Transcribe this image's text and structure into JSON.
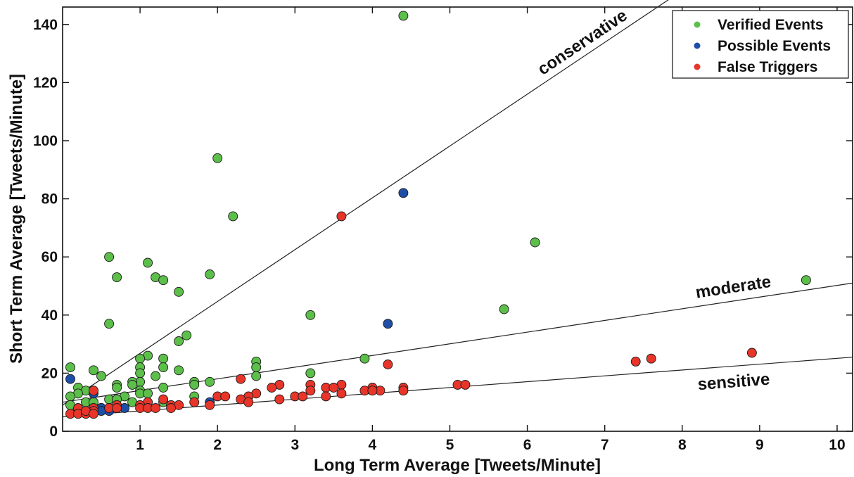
{
  "chart_data": {
    "type": "scatter",
    "title": "",
    "xlabel": "Long Term Average [Tweets/Minute]",
    "ylabel": "Short Term Average [Tweets/Minute]",
    "xlim": [
      0,
      10.2
    ],
    "ylim": [
      0,
      146
    ],
    "x_ticks": [
      1,
      2,
      3,
      4,
      5,
      6,
      7,
      8,
      9,
      10
    ],
    "y_ticks": [
      0,
      20,
      40,
      60,
      80,
      100,
      120,
      140
    ],
    "grid": false,
    "legend_position": "top-right",
    "series": [
      {
        "name": "Verified Events",
        "color": "#5cbf4a",
        "points": [
          [
            4.4,
            143
          ],
          [
            2.0,
            94
          ],
          [
            2.2,
            74
          ],
          [
            6.1,
            65
          ],
          [
            0.6,
            60
          ],
          [
            1.1,
            58
          ],
          [
            1.2,
            53
          ],
          [
            0.7,
            53
          ],
          [
            1.3,
            52
          ],
          [
            1.9,
            54
          ],
          [
            9.6,
            52
          ],
          [
            1.5,
            48
          ],
          [
            5.7,
            42
          ],
          [
            3.2,
            40
          ],
          [
            0.6,
            37
          ],
          [
            1.6,
            33
          ],
          [
            1.5,
            31
          ],
          [
            1.1,
            26
          ],
          [
            1.0,
            25
          ],
          [
            1.3,
            25
          ],
          [
            3.9,
            25
          ],
          [
            2.5,
            24
          ],
          [
            0.1,
            22
          ],
          [
            1.0,
            22
          ],
          [
            1.3,
            22
          ],
          [
            2.5,
            22
          ],
          [
            0.4,
            21
          ],
          [
            1.5,
            21
          ],
          [
            1.0,
            20
          ],
          [
            3.2,
            20
          ],
          [
            0.5,
            19
          ],
          [
            1.2,
            19
          ],
          [
            2.5,
            19
          ],
          [
            1.0,
            17
          ],
          [
            1.7,
            17
          ],
          [
            1.9,
            17
          ],
          [
            0.9,
            17
          ],
          [
            0.7,
            16
          ],
          [
            0.9,
            16
          ],
          [
            1.7,
            16
          ],
          [
            0.2,
            15
          ],
          [
            0.7,
            15
          ],
          [
            1.3,
            15
          ],
          [
            0.3,
            14
          ],
          [
            1.0,
            14
          ],
          [
            0.2,
            13
          ],
          [
            1.0,
            13
          ],
          [
            1.1,
            13
          ],
          [
            0.1,
            12
          ],
          [
            0.8,
            12
          ],
          [
            1.7,
            12
          ],
          [
            0.6,
            11
          ],
          [
            0.7,
            11
          ],
          [
            0.3,
            10
          ],
          [
            0.4,
            10
          ],
          [
            0.9,
            10
          ],
          [
            1.3,
            10
          ],
          [
            0.1,
            9
          ],
          [
            0.5,
            8
          ],
          [
            0.2,
            7
          ]
        ]
      },
      {
        "name": "Possible Events",
        "color": "#1f4ea6",
        "points": [
          [
            4.4,
            82
          ],
          [
            4.2,
            37
          ],
          [
            0.1,
            18
          ],
          [
            0.4,
            13
          ],
          [
            1.9,
            10
          ],
          [
            0.8,
            8
          ],
          [
            0.5,
            8
          ],
          [
            0.6,
            7
          ],
          [
            0.5,
            7
          ]
        ]
      },
      {
        "name": "False Triggers",
        "color": "#e8352a",
        "points": [
          [
            3.6,
            74
          ],
          [
            8.9,
            27
          ],
          [
            7.6,
            25
          ],
          [
            7.4,
            24
          ],
          [
            4.2,
            23
          ],
          [
            2.3,
            18
          ],
          [
            2.8,
            16
          ],
          [
            3.2,
            16
          ],
          [
            3.6,
            16
          ],
          [
            5.1,
            16
          ],
          [
            5.2,
            16
          ],
          [
            2.7,
            15
          ],
          [
            3.4,
            15
          ],
          [
            3.5,
            15
          ],
          [
            4.4,
            15
          ],
          [
            4.0,
            15
          ],
          [
            3.9,
            14
          ],
          [
            4.1,
            14
          ],
          [
            4.0,
            14
          ],
          [
            4.4,
            14
          ],
          [
            3.2,
            14
          ],
          [
            0.4,
            14
          ],
          [
            2.5,
            13
          ],
          [
            3.6,
            13
          ],
          [
            2.0,
            12
          ],
          [
            2.1,
            12
          ],
          [
            2.4,
            12
          ],
          [
            3.0,
            12
          ],
          [
            3.1,
            12
          ],
          [
            3.4,
            12
          ],
          [
            2.3,
            11
          ],
          [
            2.8,
            11
          ],
          [
            1.3,
            11
          ],
          [
            2.4,
            10
          ],
          [
            1.7,
            10
          ],
          [
            1.1,
            10
          ],
          [
            0.7,
            9
          ],
          [
            1.4,
            9
          ],
          [
            1.5,
            9
          ],
          [
            1.9,
            9
          ],
          [
            1.0,
            9
          ],
          [
            0.2,
            8
          ],
          [
            0.4,
            8
          ],
          [
            0.6,
            8
          ],
          [
            0.7,
            8
          ],
          [
            1.0,
            8
          ],
          [
            1.1,
            8
          ],
          [
            1.2,
            8
          ],
          [
            1.4,
            8
          ],
          [
            0.1,
            6
          ],
          [
            0.2,
            6
          ],
          [
            0.3,
            6
          ],
          [
            0.4,
            7
          ],
          [
            0.3,
            7
          ],
          [
            0.4,
            6
          ]
        ]
      }
    ],
    "threshold_lines": [
      {
        "label": "conservative",
        "x": [
          0,
          7.85
        ],
        "y": [
          9,
          149
        ]
      },
      {
        "label": "moderate",
        "x": [
          0,
          10.2
        ],
        "y": [
          10,
          51
        ]
      },
      {
        "label": "sensitive",
        "x": [
          0,
          10.2
        ],
        "y": [
          5,
          25.5
        ]
      }
    ]
  }
}
